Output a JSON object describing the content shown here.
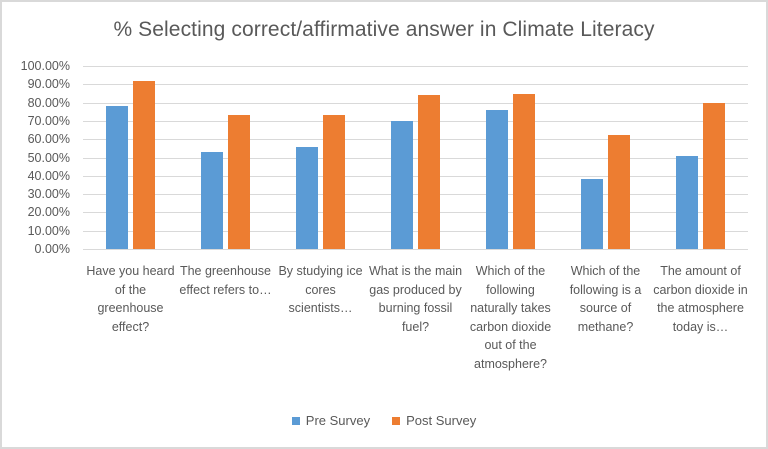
{
  "chart_data": {
    "type": "bar",
    "title": "% Selecting correct/affirmative answer in Climate Literacy",
    "xlabel": "",
    "ylabel": "",
    "ylim": [
      0,
      1.0
    ],
    "y_ticks": [
      "0.00%",
      "10.00%",
      "20.00%",
      "30.00%",
      "40.00%",
      "50.00%",
      "60.00%",
      "70.00%",
      "80.00%",
      "90.00%",
      "100.00%"
    ],
    "grid": true,
    "legend_position": "bottom",
    "categories": [
      "Have you heard of the greenhouse effect?",
      "The greenhouse effect refers to…",
      "By studying ice cores scientists…",
      "What is the main gas produced by burning fossil fuel?",
      "Which of the following naturally takes carbon dioxide out of the atmosphere?",
      "Which of the following is a source of methane?",
      "The amount of carbon dioxide in the atmosphere today is…"
    ],
    "series": [
      {
        "name": "Pre Survey",
        "color": "#5b9bd5",
        "values": [
          0.78,
          0.53,
          0.555,
          0.7,
          0.76,
          0.385,
          0.51
        ]
      },
      {
        "name": "Post Survey",
        "color": "#ed7d31",
        "values": [
          0.92,
          0.73,
          0.73,
          0.84,
          0.845,
          0.625,
          0.8
        ]
      }
    ]
  },
  "legend": {
    "pre_label": "Pre Survey",
    "post_label": "Post Survey"
  }
}
